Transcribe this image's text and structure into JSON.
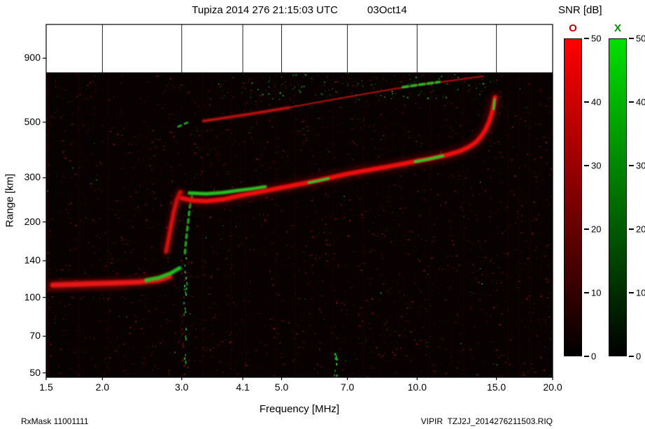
{
  "header": {
    "title": "Tupiza 2014 276 21:15:03 UTC",
    "date": "03Oct14"
  },
  "colorbar": {
    "title": "SNR [dB]",
    "o_label": "O",
    "x_label": "X",
    "o_label_color": "#c00000",
    "x_label_color": "#009000",
    "o_top_color": "#ff0000",
    "x_top_color": "#00e000",
    "bottom_color": "#000000",
    "ticks": [
      0,
      10,
      20,
      30,
      40,
      50
    ]
  },
  "footer": {
    "rxmask": "RxMask 11001111",
    "file": "VIPIR  TZJ2J_2014276211503.RIQ"
  },
  "chart_data": {
    "type": "heatmap",
    "title": "Tupiza 2014 276 21:15:03 UTC  03Oct14",
    "xlabel": "Frequency [MHz]",
    "ylabel": "Range [km]",
    "x_scale": "log",
    "y_scale": "log",
    "xlim": [
      1.5,
      20
    ],
    "ylim": [
      48,
      1227
    ],
    "x_ticks": [
      1.5,
      2,
      3,
      4.1,
      5,
      7,
      10,
      15,
      20
    ],
    "x_tick_labels": [
      "1.5",
      "2.0",
      "3.0",
      "4.1",
      "5.0",
      "7.0",
      "10.0",
      "15.0",
      "20.0"
    ],
    "y_ticks": [
      50,
      70,
      100,
      140,
      200,
      300,
      500,
      900
    ],
    "y_tick_labels": [
      "50",
      "70",
      "100",
      "140",
      "200",
      "300",
      "500",
      "900"
    ],
    "snr_scale": {
      "min": 0,
      "max": 50,
      "o_color": "#ff0000",
      "x_color": "#00e000"
    },
    "data_top_km": 790,
    "background": "#070101",
    "series": [
      {
        "name": "e-layer-spread",
        "color": "#7a0606",
        "width": 18,
        "opacity": 0.45,
        "blur": 5,
        "points": [
          [
            1.52,
            108
          ],
          [
            1.7,
            112
          ],
          [
            1.95,
            113
          ],
          [
            2.2,
            114
          ]
        ]
      },
      {
        "name": "e-layer-o-glow",
        "color": "#a00808",
        "width": 12,
        "opacity": 0.6,
        "blur": 4,
        "points": [
          [
            1.55,
            112
          ],
          [
            1.8,
            113
          ],
          [
            2.1,
            114
          ],
          [
            2.4,
            115
          ],
          [
            2.65,
            117
          ],
          [
            2.82,
            121
          ]
        ]
      },
      {
        "name": "e-layer-o",
        "color": "#e81212",
        "width": 7,
        "opacity": 1,
        "blur": 1.2,
        "points": [
          [
            1.55,
            112
          ],
          [
            1.8,
            113
          ],
          [
            2.1,
            114
          ],
          [
            2.4,
            115
          ],
          [
            2.65,
            117
          ],
          [
            2.82,
            121
          ]
        ]
      },
      {
        "name": "e-layer-x",
        "color": "#24c424",
        "width": 5.5,
        "opacity": 0.95,
        "blur": 1,
        "points": [
          [
            2.5,
            117
          ],
          [
            2.68,
            120
          ],
          [
            2.84,
            125
          ],
          [
            2.97,
            131
          ]
        ]
      },
      {
        "name": "f1-cusp-o-glow",
        "color": "#a00808",
        "width": 10,
        "opacity": 0.55,
        "blur": 4,
        "points": [
          [
            2.77,
            152
          ],
          [
            2.8,
            168
          ],
          [
            2.84,
            192
          ],
          [
            2.88,
            218
          ],
          [
            2.93,
            246
          ],
          [
            2.98,
            263
          ]
        ]
      },
      {
        "name": "f1-cusp-o",
        "color": "#da1010",
        "width": 5.5,
        "opacity": 1,
        "blur": 1.2,
        "points": [
          [
            2.77,
            152
          ],
          [
            2.8,
            168
          ],
          [
            2.84,
            192
          ],
          [
            2.88,
            218
          ],
          [
            2.93,
            246
          ],
          [
            2.98,
            263
          ]
        ]
      },
      {
        "name": "f1-cusp-x",
        "color": "#1fb81f",
        "width": 3.5,
        "opacity": 0.9,
        "blur": 0.8,
        "dash": "5 6",
        "points": [
          [
            3.05,
            150
          ],
          [
            3.07,
            172
          ],
          [
            3.1,
            200
          ],
          [
            3.13,
            232
          ],
          [
            3.17,
            258
          ]
        ]
      },
      {
        "name": "f-trace-o-glow",
        "color": "#900606",
        "width": 13,
        "opacity": 0.5,
        "blur": 5,
        "points": [
          [
            3.0,
            249
          ],
          [
            3.15,
            244
          ],
          [
            3.4,
            242
          ],
          [
            3.7,
            246
          ],
          [
            4.1,
            256
          ],
          [
            4.6,
            266
          ],
          [
            5.0,
            274
          ],
          [
            5.6,
            285
          ],
          [
            6.3,
            298
          ],
          [
            7.0,
            311
          ],
          [
            7.8,
            322
          ],
          [
            8.6,
            332
          ],
          [
            9.4,
            342
          ],
          [
            10.0,
            350
          ],
          [
            10.8,
            359
          ],
          [
            11.6,
            369
          ],
          [
            12.4,
            382
          ],
          [
            13.0,
            397
          ],
          [
            13.5,
            415
          ],
          [
            13.9,
            440
          ],
          [
            14.2,
            468
          ],
          [
            14.45,
            500
          ],
          [
            14.65,
            542
          ],
          [
            14.8,
            588
          ],
          [
            14.9,
            628
          ]
        ]
      },
      {
        "name": "f-trace-x",
        "color": "#28cc28",
        "width": 5,
        "opacity": 0.95,
        "blur": 1,
        "points": [
          [
            3.12,
            261
          ],
          [
            3.4,
            259
          ],
          [
            3.7,
            262
          ],
          [
            4.0,
            267
          ],
          [
            4.3,
            271
          ],
          [
            4.6,
            276
          ]
        ]
      },
      {
        "name": "f-trace-o",
        "color": "#ef1010",
        "width": 6.5,
        "opacity": 1,
        "blur": 1.2,
        "points": [
          [
            3.0,
            249
          ],
          [
            3.15,
            244
          ],
          [
            3.4,
            242
          ],
          [
            3.7,
            246
          ],
          [
            4.1,
            256
          ],
          [
            4.6,
            266
          ],
          [
            5.0,
            274
          ],
          [
            5.6,
            285
          ],
          [
            6.3,
            298
          ],
          [
            7.0,
            311
          ],
          [
            7.8,
            322
          ],
          [
            8.6,
            332
          ],
          [
            9.4,
            342
          ],
          [
            10.0,
            350
          ],
          [
            10.8,
            359
          ],
          [
            11.6,
            369
          ],
          [
            12.4,
            382
          ],
          [
            13.0,
            397
          ],
          [
            13.5,
            415
          ],
          [
            13.9,
            440
          ],
          [
            14.2,
            468
          ],
          [
            14.45,
            500
          ],
          [
            14.65,
            542
          ],
          [
            14.8,
            588
          ],
          [
            14.9,
            628
          ]
        ]
      },
      {
        "name": "f-trace-x-patch-1",
        "color": "#27c827",
        "width": 4,
        "opacity": 0.9,
        "blur": 0.8,
        "points": [
          [
            5.75,
            287
          ],
          [
            6.1,
            293
          ],
          [
            6.35,
            298
          ]
        ]
      },
      {
        "name": "f-trace-x-patch-2",
        "color": "#27c827",
        "width": 4.5,
        "opacity": 0.9,
        "blur": 0.8,
        "points": [
          [
            9.9,
            348
          ],
          [
            10.6,
            356
          ],
          [
            11.4,
            367
          ]
        ]
      },
      {
        "name": "f-trace-x-patch-3",
        "color": "#27c827",
        "width": 4,
        "opacity": 0.85,
        "blur": 0.8,
        "points": [
          [
            14.78,
            565
          ],
          [
            14.88,
            615
          ]
        ]
      },
      {
        "name": "second-hop-o",
        "color": "#aa0c0c",
        "width": 2.5,
        "opacity": 0.9,
        "blur": 0.6,
        "points": [
          [
            3.35,
            505
          ],
          [
            4.0,
            530
          ],
          [
            5.0,
            565
          ],
          [
            6.0,
            600
          ],
          [
            7.0,
            630
          ],
          [
            8.0,
            657
          ],
          [
            9.0,
            681
          ],
          [
            10.0,
            701
          ],
          [
            11.0,
            719
          ],
          [
            12.0,
            734
          ],
          [
            13.0,
            749
          ],
          [
            14.0,
            762
          ]
        ]
      },
      {
        "name": "second-hop-o-bright",
        "color": "#cf1212",
        "width": 3.5,
        "opacity": 0.9,
        "blur": 1.5,
        "points": [
          [
            3.35,
            505
          ],
          [
            3.9,
            526
          ],
          [
            4.5,
            547
          ],
          [
            5.2,
            572
          ]
        ]
      },
      {
        "name": "second-hop-x-patch",
        "color": "#24c024",
        "width": 4,
        "opacity": 0.9,
        "blur": 0.8,
        "dash": "7 5",
        "points": [
          [
            9.3,
            690
          ],
          [
            10.2,
            707
          ],
          [
            11.2,
            723
          ]
        ]
      },
      {
        "name": "hop-start-green",
        "color": "#22bb22",
        "width": 3,
        "opacity": 0.85,
        "blur": 0.5,
        "dash": "4 6",
        "points": [
          [
            2.95,
            480
          ],
          [
            3.1,
            500
          ]
        ]
      }
    ],
    "rfi_stripes": [
      {
        "f": 1.51,
        "o": 0.25,
        "w": 3
      },
      {
        "f": 1.77,
        "o": 0.18,
        "w": 2
      },
      {
        "f": 2.06,
        "o": 0.12,
        "w": 2
      },
      {
        "f": 2.5,
        "o": 0.1,
        "w": 1.5
      },
      {
        "f": 3.34,
        "o": 0.14,
        "w": 2
      },
      {
        "f": 3.6,
        "o": 0.1,
        "w": 1.5
      },
      {
        "f": 3.86,
        "o": 0.12,
        "w": 2
      },
      {
        "f": 4.16,
        "o": 0.1,
        "w": 2
      },
      {
        "f": 4.5,
        "o": 0.12,
        "w": 1.5
      },
      {
        "f": 4.85,
        "o": 0.1,
        "w": 2
      },
      {
        "f": 5.35,
        "o": 0.12,
        "w": 2
      },
      {
        "f": 5.85,
        "o": 0.1,
        "w": 1.5
      },
      {
        "f": 6.5,
        "o": 0.1,
        "w": 2
      },
      {
        "f": 7.6,
        "o": 0.12,
        "w": 2
      },
      {
        "f": 8.4,
        "o": 0.1,
        "w": 1.5
      },
      {
        "f": 9.3,
        "o": 0.1,
        "w": 2
      },
      {
        "f": 10.7,
        "o": 0.1,
        "w": 2
      },
      {
        "f": 11.9,
        "o": 0.1,
        "w": 1.5
      },
      {
        "f": 12.7,
        "o": 0.1,
        "w": 2
      },
      {
        "f": 15.9,
        "o": 0.14,
        "w": 2.5
      },
      {
        "f": 16.8,
        "o": 0.12,
        "w": 2
      },
      {
        "f": 17.8,
        "o": 0.12,
        "w": 2
      },
      {
        "f": 18.9,
        "o": 0.1,
        "w": 2
      }
    ],
    "speckle_columns": [
      {
        "f": 3.06,
        "km_min": 52,
        "km_max": 150,
        "color": "#1fae1f",
        "count": 22
      },
      {
        "f": 6.6,
        "km_min": 49,
        "km_max": 62,
        "color": "#1fae1f",
        "count": 12
      },
      {
        "f": 3.02,
        "km_min": 52,
        "km_max": 140,
        "color": "#5a0808",
        "count": 18
      }
    ],
    "noise": {
      "seed": 42,
      "red": {
        "count": 3000,
        "palette": [
          "#250101",
          "#380202",
          "#4d0303",
          "#620404",
          "#7b0606",
          "#960808"
        ],
        "min_size": 1,
        "max_size": 2.4,
        "min_op": 0.3,
        "max_op": 0.9
      },
      "green": {
        "count": 80,
        "palette": [
          "#0d3d0d",
          "#156815",
          "#1f9a1f"
        ],
        "min_size": 1,
        "max_size": 2.2,
        "min_op": 0.4,
        "max_op": 0.9
      },
      "green_top_band": {
        "count": 130,
        "f_range": [
          3.6,
          14.6
        ],
        "km_range": [
          620,
          790
        ]
      }
    }
  }
}
